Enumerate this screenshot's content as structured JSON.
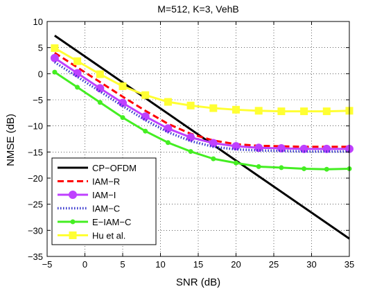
{
  "chart_data": {
    "type": "line",
    "title": "M=512, K=3, VehB",
    "xlabel": "SNR (dB)",
    "ylabel": "NMSE (dB)",
    "xlim": [
      -5,
      35
    ],
    "ylim": [
      -35,
      10
    ],
    "xticks": [
      -5,
      0,
      5,
      10,
      15,
      20,
      25,
      30,
      35
    ],
    "yticks": [
      -35,
      -30,
      -25,
      -20,
      -15,
      -10,
      -5,
      0,
      5,
      10
    ],
    "grid": true,
    "legend_position": "bottom-left",
    "series": [
      {
        "name": "CP−OFDM",
        "color": "#000000",
        "style": "solid",
        "marker": "none",
        "x": [
          -4,
          35
        ],
        "y": [
          7.3,
          -31.6
        ]
      },
      {
        "name": "IAM−R",
        "color": "#ff0000",
        "style": "dashed",
        "marker": "none",
        "x": [
          -4,
          -1,
          2,
          5,
          8,
          11,
          14,
          17,
          20,
          23,
          26,
          29,
          32,
          35
        ],
        "y": [
          4.0,
          1.2,
          -1.6,
          -4.4,
          -7.1,
          -9.6,
          -11.5,
          -12.8,
          -13.5,
          -13.8,
          -13.9,
          -14.0,
          -14.0,
          -14.0
        ]
      },
      {
        "name": "IAM−I",
        "color": "#bf40ff",
        "style": "solid",
        "marker": "circle",
        "x": [
          -4,
          -1,
          2,
          5,
          8,
          11,
          14,
          17,
          20,
          23,
          26,
          29,
          32,
          35
        ],
        "y": [
          3.0,
          0.1,
          -2.8,
          -5.6,
          -8.2,
          -10.5,
          -12.2,
          -13.3,
          -13.9,
          -14.2,
          -14.3,
          -14.4,
          -14.4,
          -14.4
        ]
      },
      {
        "name": "IAM−C",
        "color": "#3333cc",
        "style": "dotted",
        "marker": "none",
        "x": [
          -4,
          -1,
          2,
          5,
          8,
          11,
          14,
          17,
          20,
          23,
          26,
          29,
          32,
          35
        ],
        "y": [
          2.2,
          -0.6,
          -3.4,
          -6.2,
          -8.9,
          -11.2,
          -12.9,
          -14.0,
          -14.5,
          -14.7,
          -14.8,
          -14.9,
          -14.9,
          -14.9
        ]
      },
      {
        "name": "E−IAM−C",
        "color": "#44ee22",
        "style": "solid",
        "marker": "dot",
        "x": [
          -4,
          -1,
          2,
          5,
          8,
          11,
          14,
          17,
          20,
          23,
          26,
          29,
          32,
          35
        ],
        "y": [
          0.3,
          -2.6,
          -5.5,
          -8.4,
          -11.0,
          -13.2,
          -14.9,
          -16.3,
          -17.1,
          -17.8,
          -18.0,
          -18.2,
          -18.3,
          -18.2
        ]
      },
      {
        "name": "Hu et al.",
        "color": "#ffff33",
        "style": "solid",
        "marker": "square",
        "x": [
          -4,
          -1,
          2,
          5,
          8,
          11,
          14,
          17,
          20,
          23,
          26,
          29,
          32,
          35
        ],
        "y": [
          4.9,
          2.4,
          -0.1,
          -2.4,
          -4.1,
          -5.4,
          -6.1,
          -6.6,
          -6.9,
          -7.1,
          -7.2,
          -7.2,
          -7.2,
          -7.1
        ]
      }
    ]
  }
}
